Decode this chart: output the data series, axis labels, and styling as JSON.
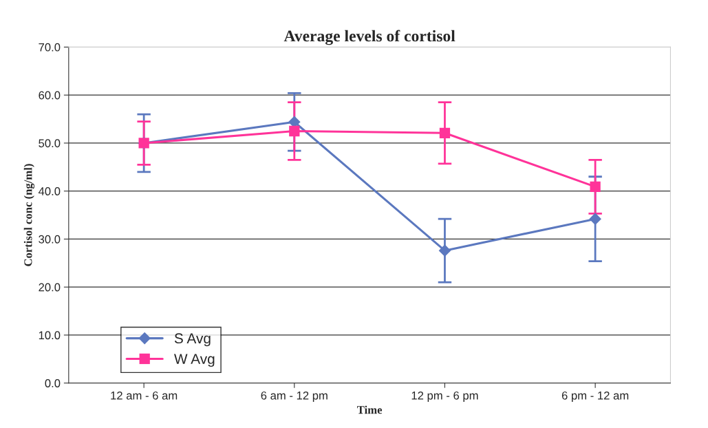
{
  "chart_data": {
    "type": "line",
    "title": "Average levels of cortisol",
    "xlabel": "Time",
    "ylabel": "Cortisol conc (ng/ml)",
    "categories": [
      "12 am - 6 am",
      "6 am - 12 pm",
      "12 pm - 6 pm",
      "6 pm - 12 am"
    ],
    "series": [
      {
        "name": "S Avg",
        "color": "#5b78bf",
        "marker": "diamond",
        "values": [
          50.0,
          54.4,
          27.6,
          34.2
        ],
        "errors": [
          6.0,
          6.0,
          6.6,
          8.8
        ]
      },
      {
        "name": "W Avg",
        "color": "#ff3399",
        "marker": "square",
        "values": [
          50.0,
          52.5,
          52.1,
          40.9
        ],
        "errors": [
          4.5,
          6.0,
          6.4,
          5.6
        ]
      }
    ],
    "ylim": [
      0,
      70
    ],
    "yticks": [
      {
        "value": 0,
        "label": "0.0"
      },
      {
        "value": 10,
        "label": "10.0"
      },
      {
        "value": 20,
        "label": "20.0"
      },
      {
        "value": 30,
        "label": "30.0"
      },
      {
        "value": 40,
        "label": "40.0"
      },
      {
        "value": 50,
        "label": "50.0"
      },
      {
        "value": 60,
        "label": "60.0"
      },
      {
        "value": 70,
        "label": "70.0"
      }
    ],
    "grid": "y",
    "legend": "bottom left",
    "line_style": "solid"
  }
}
